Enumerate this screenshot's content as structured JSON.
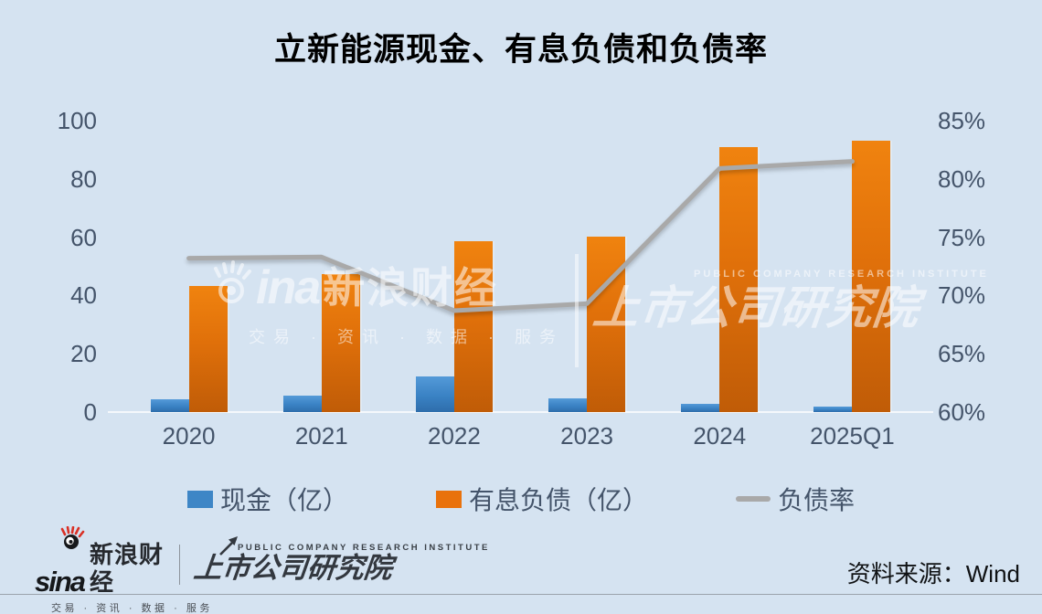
{
  "title": "立新能源现金、有息负债和负债率",
  "chart_data": {
    "type": "bar",
    "subtype": "bar+line combo, dual axis",
    "categories": [
      "2020",
      "2021",
      "2022",
      "2023",
      "2024",
      "2025Q1"
    ],
    "series": [
      {
        "name": "现金（亿）",
        "type": "bar",
        "axis": "left",
        "color": "#3e86c6",
        "values": [
          4.4,
          5.8,
          12.2,
          4.7,
          2.8,
          1.8
        ]
      },
      {
        "name": "有息负债（亿）",
        "type": "bar",
        "axis": "left",
        "color": "#e9720c",
        "values": [
          43.3,
          47.2,
          58.5,
          60.3,
          90.9,
          93.2
        ]
      },
      {
        "name": "负债率",
        "type": "line",
        "axis": "right",
        "color": "#a9a9a9",
        "values": [
          73.2,
          73.3,
          68.7,
          69.3,
          80.9,
          81.5
        ],
        "unit": "%"
      }
    ],
    "left_axis": {
      "min": 0,
      "max": 100,
      "ticks": [
        0,
        20,
        40,
        60,
        80,
        100
      ]
    },
    "right_axis": {
      "min": 60,
      "max": 85,
      "ticks": [
        60,
        65,
        70,
        75,
        80,
        85
      ],
      "tick_suffix": "%"
    },
    "grid": false,
    "legend_position": "bottom",
    "title": "立新能源现金、有息负债和负债率"
  },
  "watermark": {
    "sina_latin": "ina",
    "sina_cn": "新浪财经",
    "sina_tagline": "交易 · 资讯 · 数据 · 服务",
    "institute_en": "PUBLIC COMPANY RESEARCH INSTITUTE",
    "institute_cn": "上市公司研究院"
  },
  "footer": {
    "sina_latin": "sina",
    "sina_cn": "新浪财经",
    "sina_tagline": "交易 · 资讯 · 数据 · 服务",
    "institute_en": "PUBLIC COMPANY RESEARCH INSTITUTE",
    "institute_cn": "上市公司研究院",
    "source": "资料来源：Wind"
  },
  "colors": {
    "background": "#d5e3f1",
    "bar_cash": "#3e86c6",
    "bar_debt": "#e9720c",
    "line_ratio": "#a9a9a9",
    "axis_text": "#44546a",
    "title_text": "#000000"
  }
}
